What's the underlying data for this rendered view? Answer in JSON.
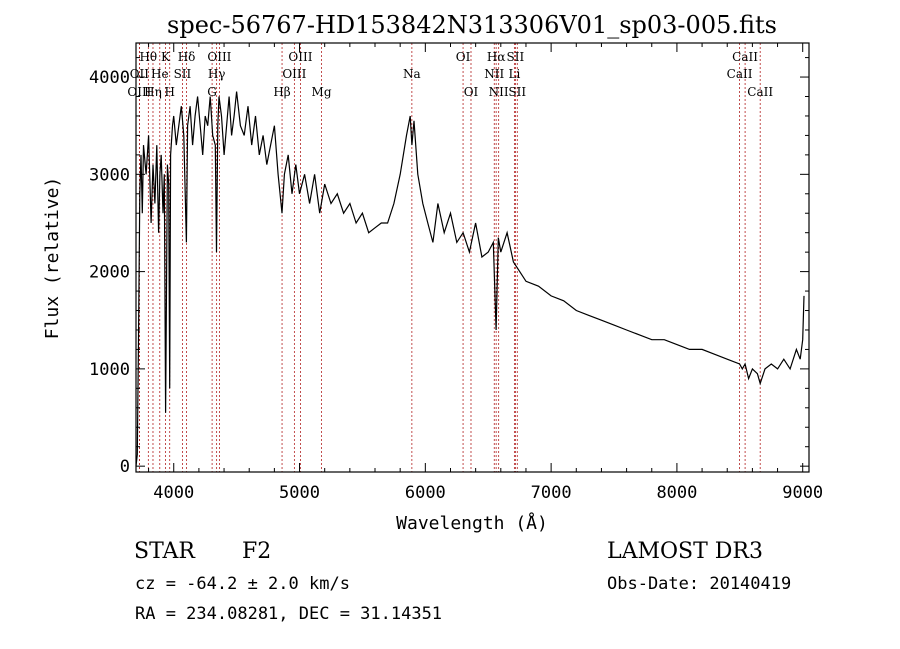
{
  "chart_data": {
    "type": "line",
    "title": "spec-56767-HD153842N313306V01_sp03-005.fits",
    "xlabel": "Wavelength (Å)",
    "ylabel": "Flux (relative)",
    "xlim": [
      3700,
      9050
    ],
    "ylim": [
      -60,
      4350
    ],
    "x_ticks": [
      4000,
      5000,
      6000,
      7000,
      8000,
      9000
    ],
    "y_ticks": [
      0,
      1000,
      2000,
      3000,
      4000
    ],
    "grid": false,
    "series": [
      {
        "x": [
          3700,
          3710,
          3720,
          3730,
          3740,
          3750,
          3760,
          3780,
          3800,
          3820,
          3835,
          3850,
          3865,
          3880,
          3890,
          3900,
          3915,
          3925,
          3935,
          3950,
          3960,
          3968,
          3975,
          3990,
          4000,
          4020,
          4040,
          4060,
          4080,
          4101,
          4110,
          4130,
          4150,
          4170,
          4190,
          4210,
          4230,
          4250,
          4270,
          4290,
          4310,
          4330,
          4340,
          4350,
          4360,
          4380,
          4400,
          4420,
          4440,
          4460,
          4480,
          4500,
          4530,
          4560,
          4590,
          4620,
          4650,
          4680,
          4710,
          4740,
          4770,
          4800,
          4830,
          4861,
          4880,
          4910,
          4940,
          4970,
          5000,
          5040,
          5080,
          5120,
          5160,
          5200,
          5250,
          5300,
          5350,
          5400,
          5450,
          5500,
          5550,
          5600,
          5650,
          5700,
          5750,
          5800,
          5850,
          5880,
          5893,
          5910,
          5940,
          5980,
          6020,
          6060,
          6100,
          6150,
          6200,
          6250,
          6300,
          6350,
          6400,
          6450,
          6500,
          6540,
          6563,
          6580,
          6600,
          6650,
          6700,
          6750,
          6800,
          6900,
          7000,
          7100,
          7200,
          7300,
          7400,
          7500,
          7600,
          7700,
          7800,
          7900,
          8000,
          8100,
          8200,
          8300,
          8400,
          8498,
          8520,
          8542,
          8570,
          8600,
          8640,
          8662,
          8700,
          8750,
          8800,
          8850,
          8900,
          8950,
          8980,
          9000,
          9010
        ],
        "y": [
          0,
          120,
          1300,
          2800,
          3200,
          2600,
          3300,
          3000,
          3400,
          2500,
          3100,
          2700,
          3300,
          2400,
          3000,
          3200,
          2600,
          3000,
          550,
          3100,
          2900,
          800,
          3200,
          3500,
          3600,
          3300,
          3500,
          3700,
          3400,
          2300,
          3500,
          3700,
          3300,
          3600,
          3800,
          3500,
          3200,
          3600,
          3500,
          3800,
          3400,
          3300,
          2200,
          3500,
          3800,
          3600,
          3200,
          3500,
          3800,
          3400,
          3600,
          3850,
          3500,
          3400,
          3700,
          3300,
          3600,
          3200,
          3400,
          3100,
          3300,
          3500,
          3000,
          2600,
          3000,
          3200,
          2800,
          3100,
          2800,
          3000,
          2700,
          3000,
          2600,
          2900,
          2700,
          2800,
          2600,
          2700,
          2500,
          2600,
          2400,
          2450,
          2500,
          2500,
          2700,
          3000,
          3400,
          3600,
          3300,
          3550,
          3000,
          2700,
          2500,
          2300,
          2700,
          2400,
          2600,
          2300,
          2400,
          2200,
          2500,
          2150,
          2200,
          2300,
          1400,
          2350,
          2200,
          2400,
          2100,
          2000,
          1900,
          1850,
          1750,
          1700,
          1600,
          1550,
          1500,
          1450,
          1400,
          1350,
          1300,
          1300,
          1250,
          1200,
          1200,
          1150,
          1100,
          1050,
          1000,
          1050,
          900,
          1000,
          950,
          850,
          1000,
          1050,
          1000,
          1100,
          1000,
          1200,
          1100,
          1300,
          1750
        ]
      }
    ],
    "line_markers": [
      {
        "label": "Hθ",
        "wave": 3798,
        "row": 1
      },
      {
        "label": "OII",
        "wave": 3727,
        "row": 2
      },
      {
        "label": "OIII",
        "wave": 3727,
        "row": 3
      },
      {
        "label": "He",
        "wave": 3889,
        "row": 2
      },
      {
        "label": "Hη",
        "wave": 3835,
        "row": 3
      },
      {
        "label": "K",
        "wave": 3934,
        "row": 1
      },
      {
        "label": "H",
        "wave": 3968,
        "row": 3
      },
      {
        "label": "SII",
        "wave": 4069,
        "row": 2
      },
      {
        "label": "Hδ",
        "wave": 4102,
        "row": 1
      },
      {
        "label": "OIII",
        "wave": 4363,
        "row": 1
      },
      {
        "label": "Hγ",
        "wave": 4341,
        "row": 2
      },
      {
        "label": "G",
        "wave": 4305,
        "row": 3
      },
      {
        "label": "OIII",
        "wave": 5007,
        "row": 1
      },
      {
        "label": "OIII",
        "wave": 4959,
        "row": 2
      },
      {
        "label": "Hβ",
        "wave": 4861,
        "row": 3
      },
      {
        "label": "Mg",
        "wave": 5175,
        "row": 3
      },
      {
        "label": "Na",
        "wave": 5893,
        "row": 2
      },
      {
        "label": "OI",
        "wave": 6300,
        "row": 1
      },
      {
        "label": "OI",
        "wave": 6363,
        "row": 3
      },
      {
        "label": "Hα",
        "wave": 6563,
        "row": 1
      },
      {
        "label": "NII",
        "wave": 6548,
        "row": 2
      },
      {
        "label": "NII",
        "wave": 6583,
        "row": 3
      },
      {
        "label": "SII",
        "wave": 6716,
        "row": 1
      },
      {
        "label": "Li",
        "wave": 6708,
        "row": 2
      },
      {
        "label": "SII",
        "wave": 6731,
        "row": 3
      },
      {
        "label": "CaII",
        "wave": 8542,
        "row": 1
      },
      {
        "label": "CaII",
        "wave": 8498,
        "row": 2
      },
      {
        "label": "CaII",
        "wave": 8662,
        "row": 3
      }
    ],
    "line_color": "#000000",
    "marker_color": "#b22222"
  },
  "info": {
    "class_label": "STAR",
    "subclass": "F2",
    "survey": "LAMOST DR3",
    "cz": "cz = -64.2 ± 2.0 km/s",
    "obs_date": "Obs-Date: 20140419",
    "coords": "RA = 234.08281, DEC =  31.14351"
  }
}
